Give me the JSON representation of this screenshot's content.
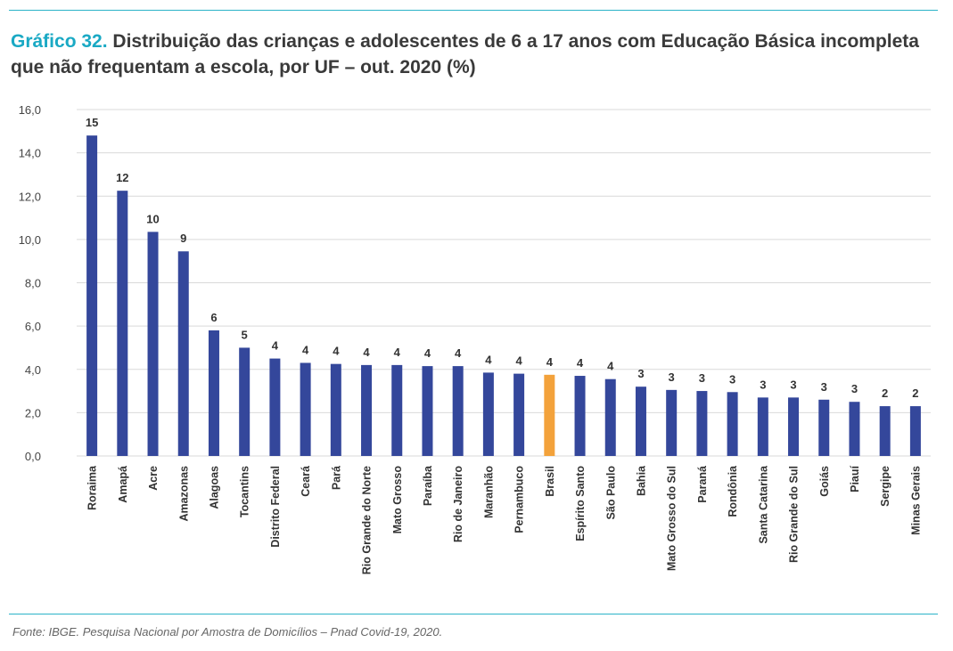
{
  "title": {
    "prefix": "Gráfico 32.",
    "text": " Distribuição das crianças e adolescentes de 6 a 17 anos com Educação Básica incompleta que não frequentam a escola, por UF – out. 2020 (%)"
  },
  "source": "Fonte: IBGE. Pesquisa Nacional por Amostra de Domicílios – Pnad Covid-19, 2020.",
  "colors": {
    "bar": "#34479b",
    "highlight": "#f3a23b",
    "grid": "#d9d9d9",
    "accent": "#1aa9c4"
  },
  "chart_data": {
    "type": "bar",
    "title": "Distribuição das crianças e adolescentes de 6 a 17 anos com Educação Básica incompleta que não frequentam a escola, por UF – out. 2020 (%)",
    "categories": [
      "Roraima",
      "Amapá",
      "Acre",
      "Amazonas",
      "Alagoas",
      "Tocantins",
      "Distrito Federal",
      "Ceará",
      "Pará",
      "Rio Grande do Norte",
      "Mato Grosso",
      "Paraíba",
      "Rio de Janeiro",
      "Maranhão",
      "Pernambuco",
      "Brasil",
      "Espírito Santo",
      "São Paulo",
      "Bahia",
      "Mato Grosso do Sul",
      "Paraná",
      "Rondônia",
      "Santa Catarina",
      "Rio Grande do Sul",
      "Goiás",
      "Piauí",
      "Sergipe",
      "Minas Gerais"
    ],
    "values": [
      14.8,
      12.25,
      10.35,
      9.45,
      5.8,
      5.0,
      4.5,
      4.3,
      4.25,
      4.2,
      4.2,
      4.15,
      4.15,
      3.85,
      3.8,
      3.75,
      3.7,
      3.55,
      3.2,
      3.05,
      3.0,
      2.95,
      2.7,
      2.7,
      2.6,
      2.5,
      2.3,
      2.3
    ],
    "data_labels": [
      "15",
      "12",
      "10",
      "9",
      "6",
      "5",
      "4",
      "4",
      "4",
      "4",
      "4",
      "4",
      "4",
      "4",
      "4",
      "4",
      "4",
      "4",
      "3",
      "3",
      "3",
      "3",
      "3",
      "3",
      "3",
      "3",
      "2",
      "2"
    ],
    "highlight_category": "Brasil",
    "ylim": [
      0,
      16
    ],
    "yticks": [
      "0,0",
      "2,0",
      "4,0",
      "6,0",
      "8,0",
      "10,0",
      "12,0",
      "14,0",
      "16,0"
    ],
    "grid": true,
    "legend": "none"
  }
}
